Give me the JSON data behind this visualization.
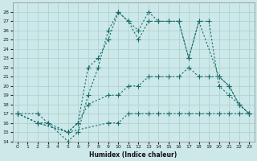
{
  "xlabel": "Humidex (Indice chaleur)",
  "bg_color": "#cce8e8",
  "line_color": "#1a6b6b",
  "grid_color": "#aacece",
  "xlim": [
    -0.5,
    23.5
  ],
  "ylim": [
    14,
    29
  ],
  "xticks": [
    0,
    1,
    2,
    3,
    4,
    5,
    6,
    7,
    8,
    9,
    10,
    11,
    12,
    13,
    14,
    15,
    16,
    17,
    18,
    19,
    20,
    21,
    22,
    23
  ],
  "yticks": [
    14,
    15,
    16,
    17,
    18,
    19,
    20,
    21,
    22,
    23,
    24,
    25,
    26,
    27,
    28
  ],
  "line1_x": [
    0,
    2,
    3,
    5,
    6,
    7,
    8,
    9,
    10,
    11,
    12,
    13,
    14,
    15,
    16,
    17,
    18,
    20,
    21,
    22,
    23
  ],
  "line1_y": [
    17,
    17,
    16,
    14,
    15,
    19,
    22,
    26,
    28,
    27,
    26,
    28,
    27,
    27,
    27,
    23,
    27,
    21,
    20,
    18,
    17
  ],
  "line2_x": [
    0,
    2,
    3,
    5,
    6,
    7,
    8,
    9,
    10,
    11,
    12,
    13,
    14,
    15,
    16,
    17,
    18,
    19,
    20,
    21,
    22,
    23
  ],
  "line2_y": [
    17,
    16,
    16,
    15,
    16,
    22,
    23,
    25,
    28,
    27,
    25,
    27,
    27,
    27,
    27,
    23,
    27,
    27,
    20,
    19,
    18,
    17
  ],
  "line3_x": [
    0,
    2,
    5,
    6,
    7,
    9,
    10,
    11,
    12,
    13,
    14,
    15,
    16,
    17,
    18,
    19,
    20,
    21,
    22,
    23
  ],
  "line3_y": [
    17,
    16,
    15,
    16,
    18,
    19,
    19,
    20,
    20,
    21,
    21,
    21,
    21,
    22,
    21,
    21,
    21,
    20,
    18,
    17
  ],
  "line4_x": [
    0,
    2,
    5,
    9,
    10,
    11,
    12,
    13,
    14,
    15,
    16,
    17,
    18,
    19,
    20,
    21,
    22,
    23
  ],
  "line4_y": [
    17,
    16,
    15,
    16,
    16,
    17,
    17,
    17,
    17,
    17,
    17,
    17,
    17,
    17,
    17,
    17,
    17,
    17
  ]
}
